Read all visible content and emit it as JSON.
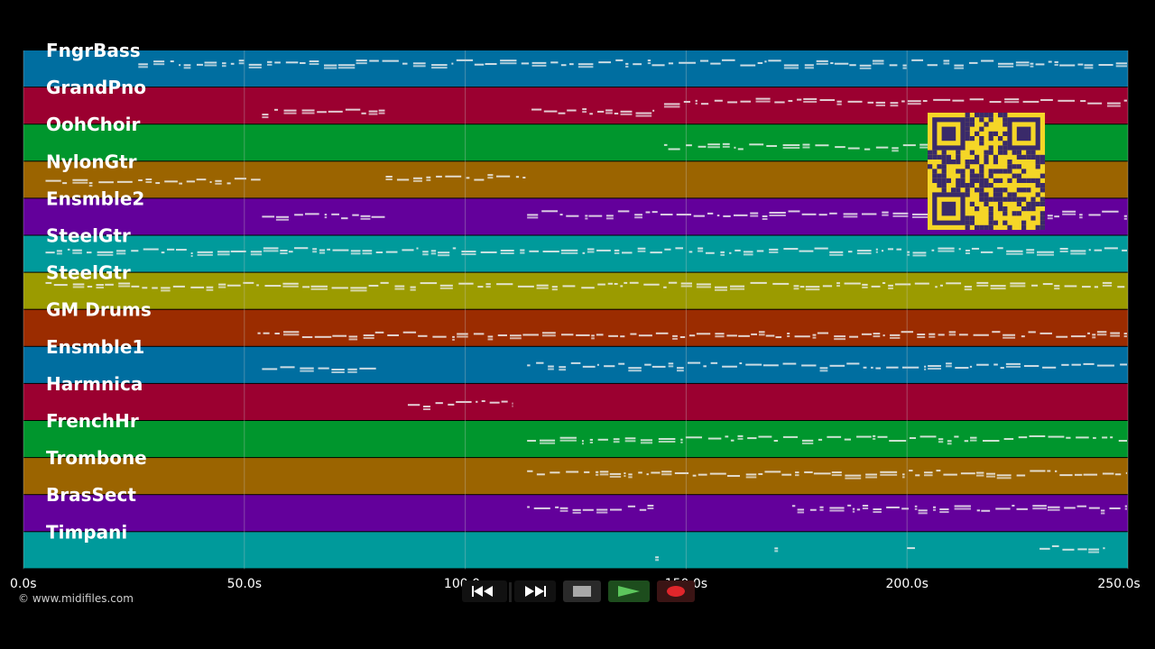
{
  "tracks": [
    {
      "name": "FngrBass",
      "color": "#006ea0"
    },
    {
      "name": "GrandPno",
      "color": "#9b0030"
    },
    {
      "name": "OohChoir",
      "color": "#00962d"
    },
    {
      "name": "NylonGtr",
      "color": "#9b6400"
    },
    {
      "name": "Ensmble2",
      "color": "#63009b"
    },
    {
      "name": "SteelGtr",
      "color": "#009a9b"
    },
    {
      "name": "SteelGtr",
      "color": "#9b9b00"
    },
    {
      "name": "GM Drums",
      "color": "#9b2c00"
    },
    {
      "name": "Ensmble1",
      "color": "#006ea0"
    },
    {
      "name": "Harmnica",
      "color": "#9b0030"
    },
    {
      "name": "FrenchHr",
      "color": "#00962d"
    },
    {
      "name": "Trombone",
      "color": "#9b6400"
    },
    {
      "name": "BrasSect",
      "color": "#63009b"
    },
    {
      "name": "Timpani",
      "color": "#009a9b"
    }
  ],
  "time_axis": {
    "max": 250,
    "ticks": [
      {
        "value": 0,
        "label": "0.0s"
      },
      {
        "value": 50,
        "label": "50.0s"
      },
      {
        "value": 100,
        "label": "100.0s"
      },
      {
        "value": 150,
        "label": "150.0s"
      },
      {
        "value": 200,
        "label": "200.0s"
      },
      {
        "value": 250,
        "label": "250.0s"
      }
    ]
  },
  "note_segments": [
    [
      [
        26,
        250
      ]
    ],
    [
      [
        54,
        82
      ],
      [
        115,
        143
      ],
      [
        145,
        250
      ]
    ],
    [
      [
        145,
        205
      ]
    ],
    [
      [
        5,
        54
      ],
      [
        82,
        114
      ]
    ],
    [
      [
        54,
        82
      ],
      [
        114,
        250
      ]
    ],
    [
      [
        5,
        250
      ]
    ],
    [
      [
        5,
        250
      ]
    ],
    [
      [
        53,
        250
      ]
    ],
    [
      [
        54,
        80
      ],
      [
        114,
        250
      ]
    ],
    [
      [
        87,
        111
      ]
    ],
    [
      [
        114,
        250
      ]
    ],
    [
      [
        114,
        250
      ]
    ],
    [
      [
        114,
        143
      ],
      [
        174,
        250
      ]
    ],
    [
      [
        143,
        144
      ],
      [
        170,
        171
      ],
      [
        200,
        202
      ],
      [
        230,
        245
      ]
    ]
  ],
  "copyright": "© www.midifiles.com",
  "transport": {
    "rewind": "rewind-icon",
    "fast_forward": "fast-forward-icon",
    "stop": "stop-icon",
    "play": "play-icon",
    "record": "record-icon"
  }
}
